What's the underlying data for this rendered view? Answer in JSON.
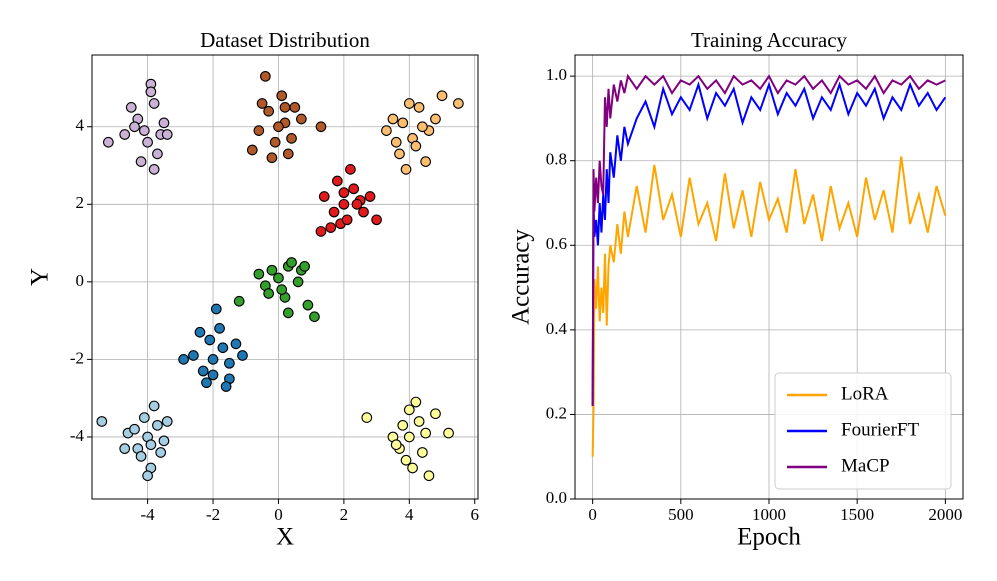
{
  "chart_data": [
    {
      "type": "scatter",
      "title": "Dataset Distribution",
      "x_label": "X",
      "y_label": "Y",
      "xlim": [
        -5.7,
        6.1
      ],
      "ylim": [
        -5.6,
        5.85
      ],
      "xticks": [
        -4,
        -2,
        0,
        2,
        4,
        6
      ],
      "yticks": [
        -4,
        -2,
        0,
        2,
        4
      ],
      "grid": true,
      "series": [
        {
          "color": "#cab2d6",
          "x": [
            -4.3,
            -3.8,
            -4.1,
            -3.6,
            -4.5,
            -3.9,
            -4.0,
            -3.5,
            -4.7,
            -3.7,
            -4.2,
            -3.9,
            -5.2,
            -3.8,
            -4.4,
            -3.4
          ],
          "y": [
            4.2,
            4.6,
            3.9,
            3.8,
            4.5,
            5.1,
            3.6,
            4.1,
            3.8,
            3.3,
            3.1,
            4.9,
            3.6,
            2.9,
            4.0,
            3.8
          ]
        },
        {
          "color": "#b15928",
          "x": [
            -0.3,
            0.2,
            -0.1,
            0.5,
            -0.6,
            0.1,
            -0.4,
            0.3,
            0.0,
            -0.5,
            0.7,
            -0.2,
            0.4,
            1.3,
            -0.8,
            0.2
          ],
          "y": [
            4.4,
            4.1,
            3.6,
            4.5,
            3.9,
            4.8,
            5.3,
            3.3,
            4.0,
            4.6,
            4.2,
            3.2,
            3.7,
            4.0,
            3.4,
            4.5
          ]
        },
        {
          "color": "#fdbf6f",
          "x": [
            3.8,
            4.3,
            4.1,
            3.5,
            4.6,
            4.0,
            3.7,
            4.8,
            4.2,
            3.3,
            4.5,
            5.5,
            3.9,
            4.4,
            5.0,
            3.6
          ],
          "y": [
            4.1,
            4.5,
            3.7,
            4.2,
            3.9,
            4.6,
            3.3,
            4.2,
            3.5,
            3.9,
            3.1,
            4.6,
            2.9,
            4.0,
            4.8,
            3.6
          ]
        },
        {
          "color": "#e31a1c",
          "x": [
            2.0,
            2.3,
            1.7,
            2.5,
            1.9,
            2.2,
            1.4,
            2.6,
            2.1,
            1.6,
            3.0,
            1.8,
            2.4,
            1.3,
            2.0,
            2.8
          ],
          "y": [
            2.0,
            2.4,
            1.8,
            2.1,
            1.5,
            2.9,
            2.2,
            1.8,
            1.6,
            1.4,
            1.6,
            2.6,
            2.0,
            1.3,
            2.3,
            2.2
          ]
        },
        {
          "color": "#33a02c",
          "x": [
            0.0,
            0.3,
            -0.4,
            0.6,
            -0.2,
            0.2,
            0.9,
            -0.6,
            0.4,
            0.1,
            1.1,
            -0.3,
            0.7,
            -1.2,
            0.3,
            0.8
          ],
          "y": [
            0.1,
            0.4,
            -0.1,
            0.0,
            0.3,
            -0.4,
            -0.6,
            0.2,
            0.5,
            -0.2,
            -0.9,
            -0.3,
            0.3,
            -0.5,
            -0.8,
            0.4
          ]
        },
        {
          "color": "#1f78b4",
          "x": [
            -2.0,
            -1.7,
            -2.3,
            -1.5,
            -2.1,
            -1.9,
            -2.6,
            -1.3,
            -2.2,
            -1.8,
            -2.9,
            -1.1,
            -2.0,
            -1.5,
            -2.4,
            -1.6
          ],
          "y": [
            -2.0,
            -1.7,
            -2.3,
            -2.5,
            -1.5,
            -0.7,
            -1.9,
            -1.6,
            -2.6,
            -1.2,
            -2.0,
            -1.9,
            -2.4,
            -2.1,
            -1.3,
            -2.7
          ]
        },
        {
          "color": "#a6cee3",
          "x": [
            -4.0,
            -3.7,
            -4.3,
            -3.5,
            -4.1,
            -3.9,
            -4.6,
            -3.4,
            -4.2,
            -3.8,
            -5.4,
            -4.0,
            -4.4,
            -3.6,
            -3.9,
            -4.7
          ],
          "y": [
            -4.0,
            -3.7,
            -4.3,
            -4.1,
            -3.5,
            -4.8,
            -3.9,
            -3.6,
            -4.5,
            -3.2,
            -3.6,
            -5.0,
            -3.8,
            -4.4,
            -4.2,
            -4.3
          ]
        },
        {
          "color": "#ffff99",
          "x": [
            4.0,
            4.3,
            3.7,
            4.5,
            3.9,
            4.2,
            3.5,
            4.8,
            4.1,
            3.8,
            5.2,
            2.7,
            4.4,
            3.6,
            4.6,
            4.0
          ],
          "y": [
            -4.0,
            -3.6,
            -4.3,
            -3.9,
            -4.6,
            -3.1,
            -4.0,
            -3.4,
            -4.8,
            -3.7,
            -3.9,
            -3.5,
            -4.4,
            -4.2,
            -5.0,
            -3.3
          ]
        }
      ]
    },
    {
      "type": "line",
      "title": "Training Accuracy",
      "x_label": "Epoch",
      "y_label": "Accuracy",
      "xlim": [
        -100,
        2100
      ],
      "ylim": [
        0,
        1.05
      ],
      "xticks": [
        0,
        500,
        1000,
        1500,
        2000
      ],
      "yticks": [
        {
          "value": 0,
          "label": "0.0"
        },
        {
          "value": 0.2,
          "label": "0.2"
        },
        {
          "value": 0.4,
          "label": "0.4"
        },
        {
          "value": 0.6,
          "label": "0.6"
        },
        {
          "value": 0.8,
          "label": "0.8"
        },
        {
          "value": 1,
          "label": "1.0"
        }
      ],
      "grid": true,
      "legend": "lower right",
      "x": [
        0,
        5,
        10,
        20,
        30,
        40,
        50,
        60,
        70,
        80,
        90,
        100,
        120,
        140,
        160,
        180,
        200,
        250,
        300,
        350,
        400,
        450,
        500,
        550,
        600,
        650,
        700,
        750,
        800,
        850,
        900,
        950,
        1000,
        1050,
        1100,
        1150,
        1200,
        1250,
        1300,
        1350,
        1400,
        1450,
        1500,
        1550,
        1600,
        1650,
        1700,
        1750,
        1800,
        1850,
        1900,
        1950,
        2000
      ],
      "series": [
        {
          "name": "LoRA",
          "color": "#ffa500",
          "values": [
            0.1,
            0.21,
            0.52,
            0.45,
            0.55,
            0.42,
            0.5,
            0.44,
            0.58,
            0.41,
            0.55,
            0.6,
            0.56,
            0.65,
            0.58,
            0.68,
            0.62,
            0.74,
            0.63,
            0.79,
            0.66,
            0.72,
            0.62,
            0.76,
            0.65,
            0.7,
            0.61,
            0.77,
            0.64,
            0.73,
            0.62,
            0.75,
            0.66,
            0.71,
            0.63,
            0.78,
            0.65,
            0.72,
            0.61,
            0.74,
            0.64,
            0.7,
            0.62,
            0.76,
            0.66,
            0.73,
            0.63,
            0.81,
            0.65,
            0.72,
            0.63,
            0.74,
            0.67
          ]
        },
        {
          "name": "FourierFT",
          "color": "#0000ff",
          "values": [
            0.22,
            0.7,
            0.62,
            0.66,
            0.6,
            0.7,
            0.63,
            0.72,
            0.66,
            0.78,
            0.7,
            0.82,
            0.76,
            0.86,
            0.8,
            0.88,
            0.84,
            0.9,
            0.94,
            0.88,
            0.97,
            0.91,
            0.95,
            0.92,
            0.98,
            0.9,
            0.96,
            0.93,
            0.97,
            0.89,
            0.95,
            0.92,
            0.98,
            0.91,
            0.96,
            0.93,
            0.97,
            0.9,
            0.95,
            0.92,
            0.98,
            0.91,
            0.96,
            0.93,
            0.97,
            0.9,
            0.95,
            0.92,
            0.98,
            0.93,
            0.96,
            0.92,
            0.95
          ]
        },
        {
          "name": "MaCP",
          "color": "#800080",
          "values": [
            0.22,
            0.78,
            0.68,
            0.76,
            0.7,
            0.8,
            0.74,
            0.72,
            0.95,
            0.88,
            0.97,
            0.9,
            0.98,
            0.94,
            0.99,
            0.96,
            1.0,
            0.97,
            1.0,
            0.98,
            1.0,
            0.96,
            0.99,
            0.98,
            1.0,
            0.97,
            0.99,
            0.96,
            1.0,
            0.98,
            0.99,
            0.97,
            1.0,
            0.96,
            0.99,
            0.98,
            1.0,
            0.97,
            0.99,
            0.96,
            1.0,
            0.98,
            0.99,
            0.97,
            1.0,
            0.96,
            0.99,
            0.98,
            1.0,
            0.97,
            0.99,
            0.98,
            0.99
          ]
        }
      ]
    }
  ]
}
